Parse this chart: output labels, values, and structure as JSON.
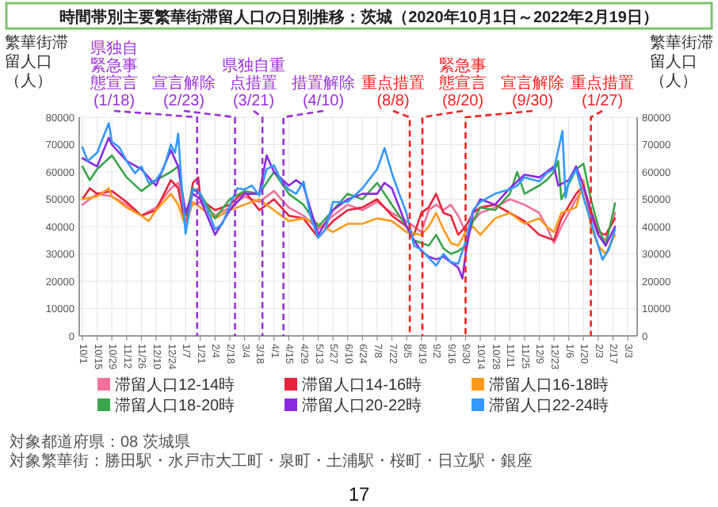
{
  "chart_data": {
    "type": "line",
    "title": "時間帯別主要繁華街滞留人口の日別推移：茨城（2020年10月1日～2022年2月19日）",
    "ylabel": "繁華街滞留人口（人）",
    "y2label": "繁華街滞留人口（人）",
    "xlim": [
      "2020-09-28",
      "2022-03-12"
    ],
    "xticks": [
      {
        "value": "2020-10-01",
        "label": "10/1"
      },
      {
        "value": "2020-10-15",
        "label": "10/15"
      },
      {
        "value": "2020-10-29",
        "label": "10/29"
      },
      {
        "value": "2020-11-12",
        "label": "11/12"
      },
      {
        "value": "2020-11-26",
        "label": "11/26"
      },
      {
        "value": "2020-12-10",
        "label": "12/10"
      },
      {
        "value": "2020-12-24",
        "label": "12/24"
      },
      {
        "value": "2021-01-07",
        "label": "1/7"
      },
      {
        "value": "2021-01-21",
        "label": "1/21"
      },
      {
        "value": "2021-02-04",
        "label": "2/4"
      },
      {
        "value": "2021-02-18",
        "label": "2/18"
      },
      {
        "value": "2021-03-04",
        "label": "3/4"
      },
      {
        "value": "2021-03-18",
        "label": "3/18"
      },
      {
        "value": "2021-04-01",
        "label": "4/1"
      },
      {
        "value": "2021-04-15",
        "label": "4/15"
      },
      {
        "value": "2021-04-29",
        "label": "4/29"
      },
      {
        "value": "2021-05-13",
        "label": "5/13"
      },
      {
        "value": "2021-05-27",
        "label": "5/27"
      },
      {
        "value": "2021-06-10",
        "label": "6/10"
      },
      {
        "value": "2021-06-24",
        "label": "6/24"
      },
      {
        "value": "2021-07-08",
        "label": "7/8"
      },
      {
        "value": "2021-07-22",
        "label": "7/22"
      },
      {
        "value": "2021-08-05",
        "label": "8/5"
      },
      {
        "value": "2021-08-19",
        "label": "8/19"
      },
      {
        "value": "2021-09-02",
        "label": "9/2"
      },
      {
        "value": "2021-09-16",
        "label": "9/16"
      },
      {
        "value": "2021-09-30",
        "label": "9/30"
      },
      {
        "value": "2021-10-14",
        "label": "10/14"
      },
      {
        "value": "2021-10-28",
        "label": "10/28"
      },
      {
        "value": "2021-11-11",
        "label": "11/11"
      },
      {
        "value": "2021-11-25",
        "label": "11/25"
      },
      {
        "value": "2021-12-09",
        "label": "12/9"
      },
      {
        "value": "2021-12-23",
        "label": "12/23"
      },
      {
        "value": "2022-01-06",
        "label": "1/6"
      },
      {
        "value": "2022-01-20",
        "label": "1/20"
      },
      {
        "value": "2022-02-03",
        "label": "2/3"
      },
      {
        "value": "2022-02-17",
        "label": "2/17"
      },
      {
        "value": "2022-03-03",
        "label": "3/3"
      }
    ],
    "ylim": [
      0,
      80000
    ],
    "yticks": [
      0,
      10000,
      20000,
      30000,
      40000,
      50000,
      60000,
      70000,
      80000
    ],
    "y2lim": [
      0,
      80000
    ],
    "y2ticks": [
      0,
      10000,
      20000,
      30000,
      40000,
      50000,
      60000,
      70000,
      80000
    ],
    "grid": true,
    "legend": "bottom",
    "series": [
      {
        "name": "滞留人口12-14時",
        "color": "#f0729a",
        "x": [
          "2020-10-01",
          "2020-10-15",
          "2020-10-29",
          "2020-11-12",
          "2020-11-26",
          "2020-12-10",
          "2020-12-24",
          "2020-12-31",
          "2021-01-07",
          "2021-01-14",
          "2021-01-21",
          "2021-02-04",
          "2021-02-18",
          "2021-03-04",
          "2021-03-18",
          "2021-04-01",
          "2021-04-15",
          "2021-04-29",
          "2021-05-13",
          "2021-05-27",
          "2021-06-10",
          "2021-06-24",
          "2021-07-08",
          "2021-07-22",
          "2021-08-05",
          "2021-08-19",
          "2021-08-26",
          "2021-09-02",
          "2021-09-09",
          "2021-09-16",
          "2021-09-23",
          "2021-09-30",
          "2021-10-07",
          "2021-10-14",
          "2021-10-28",
          "2021-11-11",
          "2021-11-25",
          "2021-12-09",
          "2021-12-16",
          "2021-12-23",
          "2021-12-30",
          "2022-01-13",
          "2022-01-20",
          "2022-01-27",
          "2022-02-03",
          "2022-02-10",
          "2022-02-19"
        ],
        "values": [
          48000,
          52000,
          51000,
          48000,
          44000,
          47000,
          54000,
          56000,
          46000,
          48000,
          49000,
          44000,
          47000,
          51000,
          49000,
          53000,
          47000,
          44000,
          39000,
          44000,
          48000,
          46000,
          49000,
          45000,
          42000,
          38000,
          46000,
          48000,
          46000,
          48000,
          44000,
          38000,
          42000,
          45000,
          47000,
          50000,
          48000,
          45000,
          40000,
          34000,
          40000,
          50000,
          54000,
          44000,
          37000,
          35000,
          45000
        ]
      },
      {
        "name": "滞留人口14-16時",
        "color": "#e8243c",
        "x": [
          "2020-10-01",
          "2020-10-08",
          "2020-10-15",
          "2020-10-29",
          "2020-11-12",
          "2020-11-26",
          "2020-12-10",
          "2020-12-24",
          "2020-12-31",
          "2021-01-07",
          "2021-01-14",
          "2021-01-19",
          "2021-01-21",
          "2021-02-04",
          "2021-02-18",
          "2021-03-04",
          "2021-03-18",
          "2021-04-01",
          "2021-04-15",
          "2021-04-29",
          "2021-05-13",
          "2021-05-27",
          "2021-06-10",
          "2021-06-24",
          "2021-07-08",
          "2021-07-22",
          "2021-08-05",
          "2021-08-12",
          "2021-08-19",
          "2021-08-26",
          "2021-09-02",
          "2021-09-09",
          "2021-09-16",
          "2021-09-23",
          "2021-09-30",
          "2021-10-07",
          "2021-10-14",
          "2021-10-28",
          "2021-11-11",
          "2021-11-25",
          "2021-12-09",
          "2021-12-16",
          "2021-12-23",
          "2021-12-30",
          "2022-01-13",
          "2022-01-20",
          "2022-01-27",
          "2022-02-03",
          "2022-02-10",
          "2022-02-19"
        ],
        "values": [
          50000,
          54000,
          52000,
          53000,
          49000,
          44000,
          46000,
          57000,
          54000,
          40000,
          56000,
          58000,
          50000,
          46000,
          48000,
          53000,
          46000,
          50000,
          44000,
          43000,
          36000,
          42000,
          46000,
          47000,
          50000,
          44000,
          40000,
          37000,
          45000,
          47000,
          52000,
          45000,
          44000,
          37000,
          40000,
          45000,
          47000,
          48000,
          45000,
          42000,
          37000,
          36000,
          35000,
          43000,
          52000,
          55000,
          46000,
          38000,
          37000,
          43000
        ]
      },
      {
        "name": "滞留人口16-18時",
        "color": "#ff9a1a",
        "x": [
          "2020-10-01",
          "2020-10-15",
          "2020-10-26",
          "2020-10-29",
          "2020-11-12",
          "2020-11-26",
          "2020-12-03",
          "2020-12-10",
          "2020-12-24",
          "2020-12-31",
          "2021-01-07",
          "2021-01-14",
          "2021-01-21",
          "2021-02-04",
          "2021-02-18",
          "2021-03-04",
          "2021-03-18",
          "2021-04-01",
          "2021-04-15",
          "2021-04-29",
          "2021-05-13",
          "2021-05-27",
          "2021-06-10",
          "2021-06-24",
          "2021-07-08",
          "2021-07-22",
          "2021-08-05",
          "2021-08-19",
          "2021-08-26",
          "2021-09-02",
          "2021-09-09",
          "2021-09-16",
          "2021-09-23",
          "2021-09-30",
          "2021-10-07",
          "2021-10-14",
          "2021-10-28",
          "2021-11-11",
          "2021-11-25",
          "2021-12-09",
          "2021-12-16",
          "2021-12-23",
          "2021-12-30",
          "2022-01-13",
          "2022-01-20",
          "2022-01-27",
          "2022-02-03",
          "2022-02-10",
          "2022-02-19"
        ],
        "values": [
          50000,
          51000,
          54000,
          51000,
          47000,
          44000,
          42000,
          46000,
          52000,
          48000,
          40000,
          49000,
          47000,
          43000,
          46000,
          48000,
          50000,
          46000,
          42000,
          43000,
          41000,
          38000,
          41000,
          41000,
          43000,
          42000,
          38000,
          37000,
          40000,
          45000,
          39000,
          34000,
          33000,
          38000,
          40000,
          37000,
          43000,
          45000,
          41000,
          43000,
          40000,
          38000,
          45000,
          47000,
          57000,
          40000,
          33000,
          30000,
          37000
        ]
      },
      {
        "name": "滞留人口18-20時",
        "color": "#3aa64c",
        "x": [
          "2020-10-01",
          "2020-10-08",
          "2020-10-15",
          "2020-10-29",
          "2020-11-12",
          "2020-11-26",
          "2020-12-10",
          "2020-12-24",
          "2020-12-31",
          "2021-01-07",
          "2021-01-14",
          "2021-01-21",
          "2021-02-04",
          "2021-02-18",
          "2021-03-04",
          "2021-03-18",
          "2021-04-01",
          "2021-04-15",
          "2021-04-29",
          "2021-05-13",
          "2021-05-27",
          "2021-06-10",
          "2021-06-24",
          "2021-07-08",
          "2021-07-22",
          "2021-08-05",
          "2021-08-12",
          "2021-08-19",
          "2021-08-26",
          "2021-09-02",
          "2021-09-09",
          "2021-09-16",
          "2021-09-23",
          "2021-09-30",
          "2021-10-07",
          "2021-10-14",
          "2021-10-28",
          "2021-11-11",
          "2021-11-18",
          "2021-11-25",
          "2021-12-09",
          "2021-12-16",
          "2021-12-23",
          "2021-12-27",
          "2021-12-30",
          "2022-01-13",
          "2022-01-20",
          "2022-01-27",
          "2022-02-03",
          "2022-02-10",
          "2022-02-17",
          "2022-02-19"
        ],
        "values": [
          62000,
          57000,
          61000,
          66000,
          58000,
          53000,
          57000,
          60000,
          62000,
          44000,
          54000,
          52000,
          43000,
          50000,
          53000,
          52000,
          60000,
          52000,
          48000,
          40000,
          46000,
          52000,
          50000,
          56000,
          48000,
          40000,
          35000,
          34000,
          33000,
          37000,
          32000,
          30000,
          31000,
          33000,
          42000,
          47000,
          46000,
          52000,
          60000,
          52000,
          55000,
          57000,
          60000,
          64000,
          50000,
          61000,
          63000,
          50000,
          40000,
          33000,
          45000,
          48500
        ]
      },
      {
        "name": "滞留人口20-22時",
        "color": "#8a2be2",
        "x": [
          "2020-10-01",
          "2020-10-15",
          "2020-10-26",
          "2020-10-29",
          "2020-11-12",
          "2020-11-26",
          "2020-12-10",
          "2020-12-24",
          "2020-12-31",
          "2021-01-07",
          "2021-01-14",
          "2021-01-21",
          "2021-02-04",
          "2021-02-18",
          "2021-03-04",
          "2021-03-18",
          "2021-03-25",
          "2021-04-01",
          "2021-04-15",
          "2021-04-22",
          "2021-04-29",
          "2021-05-13",
          "2021-05-27",
          "2021-06-10",
          "2021-06-24",
          "2021-07-08",
          "2021-07-15",
          "2021-07-22",
          "2021-08-05",
          "2021-08-12",
          "2021-08-19",
          "2021-08-26",
          "2021-09-02",
          "2021-09-09",
          "2021-09-16",
          "2021-09-23",
          "2021-09-27",
          "2021-09-30",
          "2021-10-07",
          "2021-10-14",
          "2021-10-28",
          "2021-11-11",
          "2021-11-25",
          "2021-12-09",
          "2021-12-16",
          "2021-12-23",
          "2021-12-27",
          "2022-01-06",
          "2022-01-13",
          "2022-01-20",
          "2022-01-27",
          "2022-02-03",
          "2022-02-10",
          "2022-02-19"
        ],
        "values": [
          65000,
          62000,
          72500,
          70000,
          64000,
          61000,
          55000,
          68000,
          62000,
          45000,
          52000,
          50000,
          37000,
          46000,
          52000,
          52000,
          66000,
          60000,
          55000,
          57000,
          55000,
          37000,
          46000,
          50000,
          52000,
          52000,
          56000,
          54000,
          40000,
          35000,
          31000,
          29000,
          28000,
          29000,
          27000,
          25000,
          21000,
          30000,
          45000,
          50000,
          48000,
          54000,
          59000,
          58000,
          60000,
          62000,
          55000,
          57000,
          62000,
          55000,
          45000,
          37000,
          33000,
          40000
        ]
      },
      {
        "name": "滞留人口22-24時",
        "color": "#3399ff",
        "x": [
          "2020-10-01",
          "2020-10-06",
          "2020-10-15",
          "2020-10-26",
          "2020-10-29",
          "2020-11-05",
          "2020-11-12",
          "2020-11-20",
          "2020-11-26",
          "2020-12-03",
          "2020-12-10",
          "2020-12-17",
          "2020-12-24",
          "2020-12-28",
          "2020-12-31",
          "2021-01-03",
          "2021-01-07",
          "2021-01-14",
          "2021-01-21",
          "2021-01-28",
          "2021-02-04",
          "2021-02-11",
          "2021-02-18",
          "2021-02-25",
          "2021-03-04",
          "2021-03-11",
          "2021-03-18",
          "2021-03-25",
          "2021-04-01",
          "2021-04-08",
          "2021-04-15",
          "2021-04-22",
          "2021-04-29",
          "2021-05-06",
          "2021-05-13",
          "2021-05-20",
          "2021-05-27",
          "2021-06-10",
          "2021-06-24",
          "2021-07-08",
          "2021-07-15",
          "2021-07-22",
          "2021-07-29",
          "2021-08-05",
          "2021-08-12",
          "2021-08-19",
          "2021-08-26",
          "2021-09-02",
          "2021-09-09",
          "2021-09-16",
          "2021-09-23",
          "2021-09-30",
          "2021-10-07",
          "2021-10-14",
          "2021-10-28",
          "2021-11-11",
          "2021-11-18",
          "2021-11-25",
          "2021-12-09",
          "2021-12-16",
          "2021-12-23",
          "2021-12-31",
          "2022-01-03",
          "2022-01-06",
          "2022-01-13",
          "2022-01-20",
          "2022-01-27",
          "2022-02-03",
          "2022-02-07",
          "2022-02-13",
          "2022-02-19"
        ],
        "values": [
          69000,
          64000,
          67000,
          77800,
          71000,
          69000,
          64000,
          59500,
          62000,
          56000,
          57000,
          61000,
          70000,
          67000,
          74000,
          56500,
          37400,
          53600,
          52000,
          46000,
          39000,
          41000,
          47700,
          54000,
          53600,
          55000,
          51400,
          61000,
          62400,
          56500,
          53600,
          52000,
          56500,
          43300,
          36000,
          39000,
          49000,
          49000,
          54000,
          61000,
          68700,
          59500,
          52000,
          44800,
          33000,
          31500,
          28600,
          25700,
          30000,
          27000,
          26400,
          34500,
          46000,
          49000,
          52000,
          53600,
          55000,
          58000,
          56500,
          59500,
          61000,
          74900,
          50600,
          56500,
          61000,
          50600,
          41800,
          33000,
          27900,
          31500,
          39000
        ]
      }
    ],
    "ref_lines": [
      {
        "axis": "x",
        "value": "2021-01-18",
        "label": "県独自緊急事態宣言(1/18)",
        "color": "#9b30d9",
        "line_style": "dashed"
      },
      {
        "axis": "x",
        "value": "2021-02-23",
        "label": "宣言解除(2/23)",
        "color": "#9b30d9",
        "line_style": "dashed"
      },
      {
        "axis": "x",
        "value": "2021-03-21",
        "label": "県独自重点措置(3/21)",
        "color": "#9b30d9",
        "line_style": "dashed"
      },
      {
        "axis": "x",
        "value": "2021-04-10",
        "label": "措置解除(4/10)",
        "color": "#9b30d9",
        "line_style": "dashed"
      },
      {
        "axis": "x",
        "value": "2021-08-08",
        "label": "重点措置(8/8)",
        "color": "#ff2020",
        "line_style": "dashed"
      },
      {
        "axis": "x",
        "value": "2021-08-20",
        "label": "緊急事態宣言(8/20)",
        "color": "#ff2020",
        "line_style": "dashed"
      },
      {
        "axis": "x",
        "value": "2021-09-30",
        "label": "宣言解除(9/30)",
        "color": "#ff2020",
        "line_style": "dashed"
      },
      {
        "axis": "x",
        "value": "2022-01-27",
        "label": "重点措置(1/27)",
        "color": "#ff2020",
        "line_style": "dashed"
      }
    ],
    "annotations": [
      "対象都道府県：08 茨城県",
      "対象繁華街：勝田駅・水戸市大工町・泉町・土浦駅・桜町・日立駅・銀座",
      "17"
    ]
  }
}
